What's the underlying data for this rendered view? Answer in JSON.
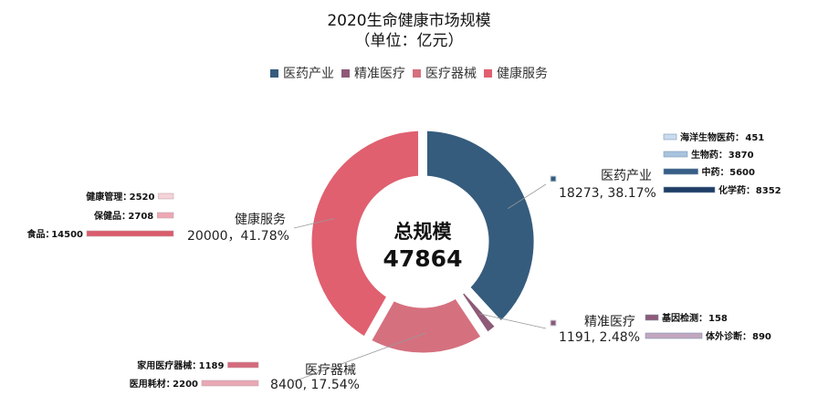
{
  "chart_data": {
    "type": "pie",
    "title": "2020生命健康市场规模",
    "subtitle": "（单位：亿元）",
    "legend_position": "top",
    "center": {
      "line1": "总规模",
      "line2": "47864"
    },
    "series": [
      {
        "name": "医药产业",
        "value": 18273,
        "percent": "38.17%",
        "label": "医药产业",
        "value_text": "18273, 38.17%",
        "color": "#355C7D",
        "sub_items": [
          {
            "name": "海洋生物医药",
            "label": "海洋生物医药：",
            "value": 451,
            "color": "#C9DCEF"
          },
          {
            "name": "生物药",
            "label": "生物药：",
            "value": 3870,
            "color": "#A8C3DE"
          },
          {
            "name": "中药",
            "label": "中药：",
            "value": 5600,
            "color": "#365E86"
          },
          {
            "name": "化学药",
            "label": "化学药：",
            "value": 8352,
            "color": "#1F3E66"
          }
        ]
      },
      {
        "name": "精准医疗",
        "value": 1191,
        "percent": "2.48%",
        "label": "精准医疗",
        "value_text": "1191, 2.48%",
        "color": "#8E5A77",
        "sub_items": [
          {
            "name": "基因检测",
            "label": "基因检测：",
            "value": 158,
            "color": "#8E5A77"
          },
          {
            "name": "体外诊断",
            "label": "体外诊断：",
            "value": 890,
            "color": "#C3A6BF"
          }
        ]
      },
      {
        "name": "医疗器械",
        "value": 8400,
        "percent": "17.54%",
        "label": "医疗器械",
        "value_text": "8400, 17.54%",
        "color": "#D5707F",
        "sub_items": [
          {
            "name": "家用医疗器械",
            "label": "家用医疗器械：",
            "value": 1189,
            "color": "#D46A7D"
          },
          {
            "name": "医用耗材",
            "label": "医用耗材：",
            "value": 2200,
            "color": "#E8A9B4"
          }
        ]
      },
      {
        "name": "健康服务",
        "value": 20000,
        "percent": "41.78%",
        "label": "健康服务",
        "value_text": "20000，41.78%",
        "color": "#E06070",
        "sub_items": [
          {
            "name": "健康管理",
            "label": "健康管理：",
            "value": 2520,
            "color": "#F4D3D8"
          },
          {
            "name": "保健品",
            "label": "保健品：",
            "value": 2708,
            "color": "#ECA8B3"
          },
          {
            "name": "食品",
            "label": "食品：",
            "value": 14500,
            "color": "#D95C6C"
          }
        ]
      }
    ]
  }
}
